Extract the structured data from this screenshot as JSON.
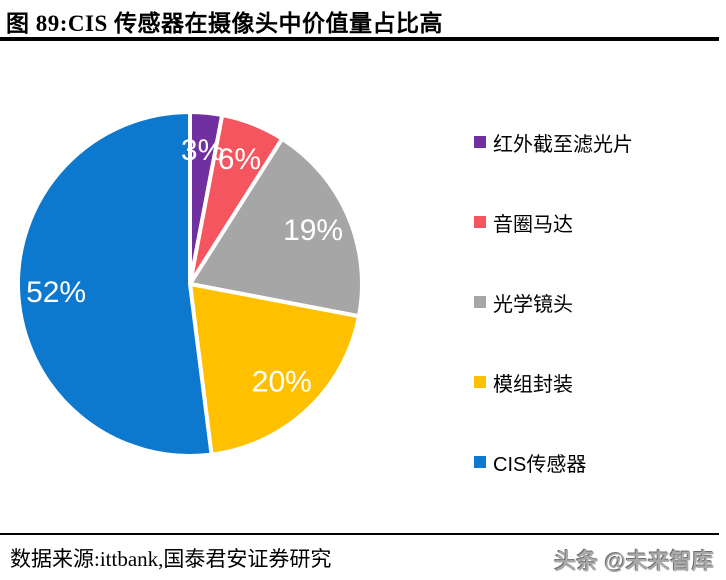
{
  "title": "图 89:CIS 传感器在摄像头中价值量占比高",
  "chart_data": {
    "type": "pie",
    "title": "图 89:CIS 传感器在摄像头中价值量占比高",
    "categories": [
      "红外截至滤光片",
      "音圈马达",
      "光学镜头",
      "模组封装",
      "CIS传感器"
    ],
    "values": [
      3,
      6,
      19,
      20,
      52
    ],
    "slice_labels": [
      "3%",
      "6%",
      "19%",
      "20%",
      "52%"
    ],
    "colors": [
      "#7030A0",
      "#F4555E",
      "#A6A6A6",
      "#FFC000",
      "#0C78CE"
    ],
    "start_angle_deg": -90,
    "direction": "clockwise",
    "legend_position": "right",
    "slice_border_color": "#ffffff",
    "label_color": "#ffffff"
  },
  "legend": {
    "items": [
      {
        "label": "红外截至滤光片"
      },
      {
        "label": "音圈马达"
      },
      {
        "label": "光学镜头"
      },
      {
        "label": "模组封装"
      },
      {
        "label": "CIS传感器"
      }
    ]
  },
  "footer": {
    "source": "数据来源:ittbank,国泰君安证券研究",
    "watermark": "头条 @未来智库"
  }
}
